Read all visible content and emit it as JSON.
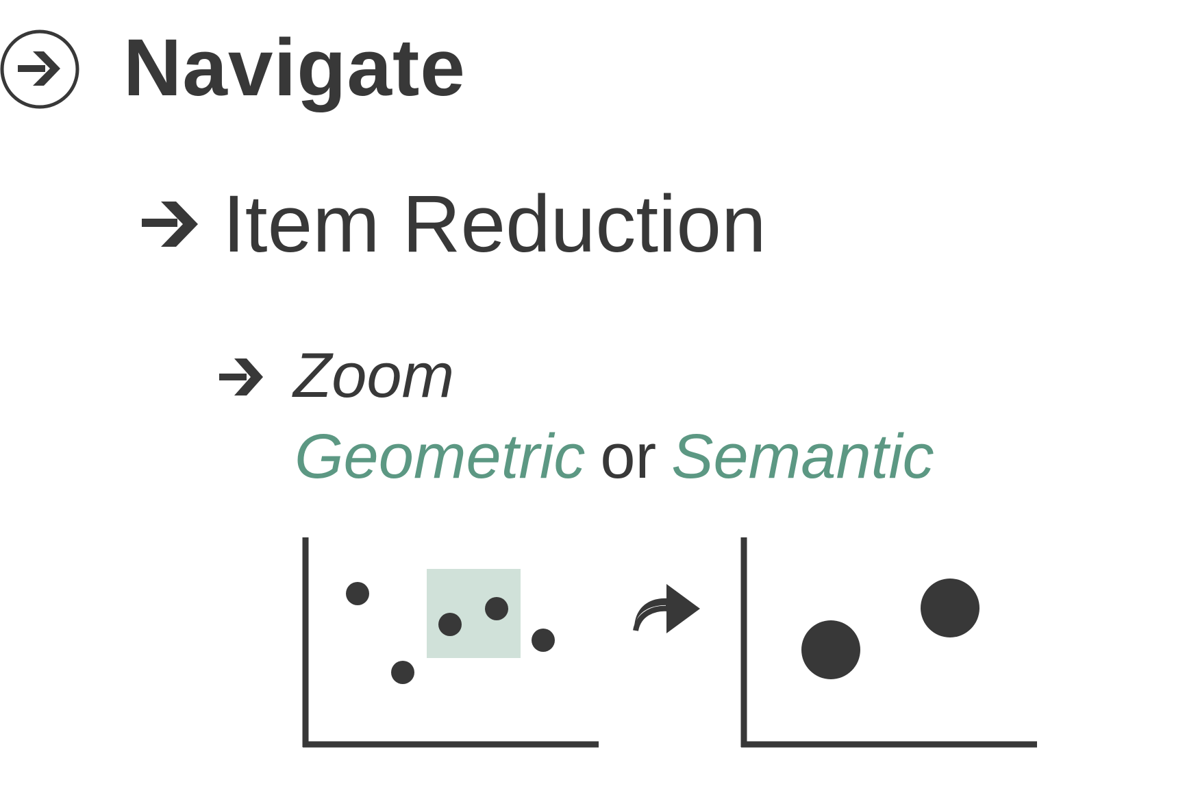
{
  "heading_level_1": {
    "label": "Navigate",
    "icon": "circled-arrow-icon"
  },
  "heading_level_2": {
    "label": "Item Reduction",
    "icon": "arrow-icon"
  },
  "heading_level_3": {
    "label": "Zoom",
    "icon": "arrow-icon"
  },
  "zoom_subline": {
    "option_a": "Geometric",
    "connector": "or",
    "option_b": "Semantic"
  },
  "colors": {
    "text": "#383838",
    "accent": "#5c9883",
    "zoom_region": "#d0e1d9",
    "background": "#ffffff"
  }
}
